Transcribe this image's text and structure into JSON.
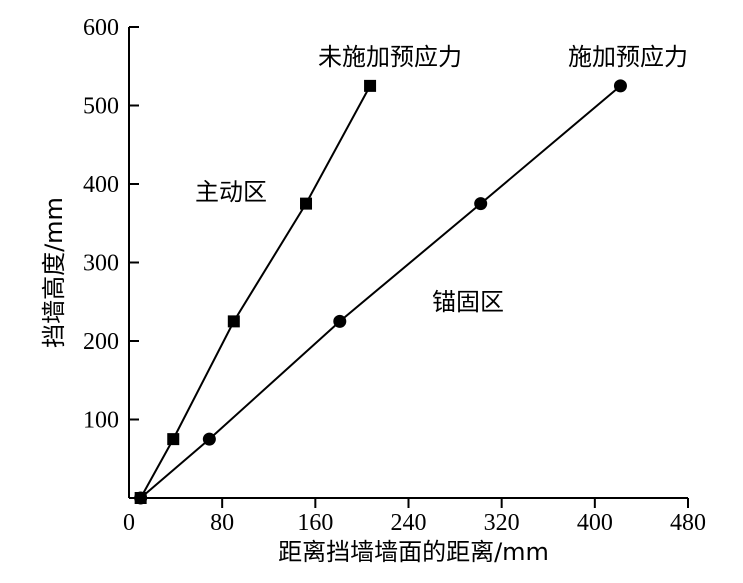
{
  "chart_data": {
    "type": "line",
    "title": "",
    "xlabel": "距离挡墙墙面的距离/mm",
    "ylabel": "挡墙高度/mm",
    "xlim": [
      0,
      480
    ],
    "ylim": [
      0,
      600
    ],
    "xticks": [
      "0",
      "80",
      "160",
      "240",
      "320",
      "400",
      "480"
    ],
    "yticks": [
      "100",
      "200",
      "300",
      "400",
      "500",
      "600"
    ],
    "series": [
      {
        "name": "未施加预应力",
        "marker": "square",
        "x": [
          10,
          38,
          90,
          152,
          207
        ],
        "y": [
          0,
          75,
          225,
          375,
          525
        ]
      },
      {
        "name": "施加预应力",
        "marker": "circle",
        "x": [
          10,
          69,
          181,
          302,
          422
        ],
        "y": [
          0,
          75,
          225,
          375,
          525
        ]
      }
    ],
    "annotations": [
      "主动区",
      "锚固区"
    ],
    "grid": false,
    "colors": {
      "line": "#000000",
      "marker": "#000000"
    }
  }
}
